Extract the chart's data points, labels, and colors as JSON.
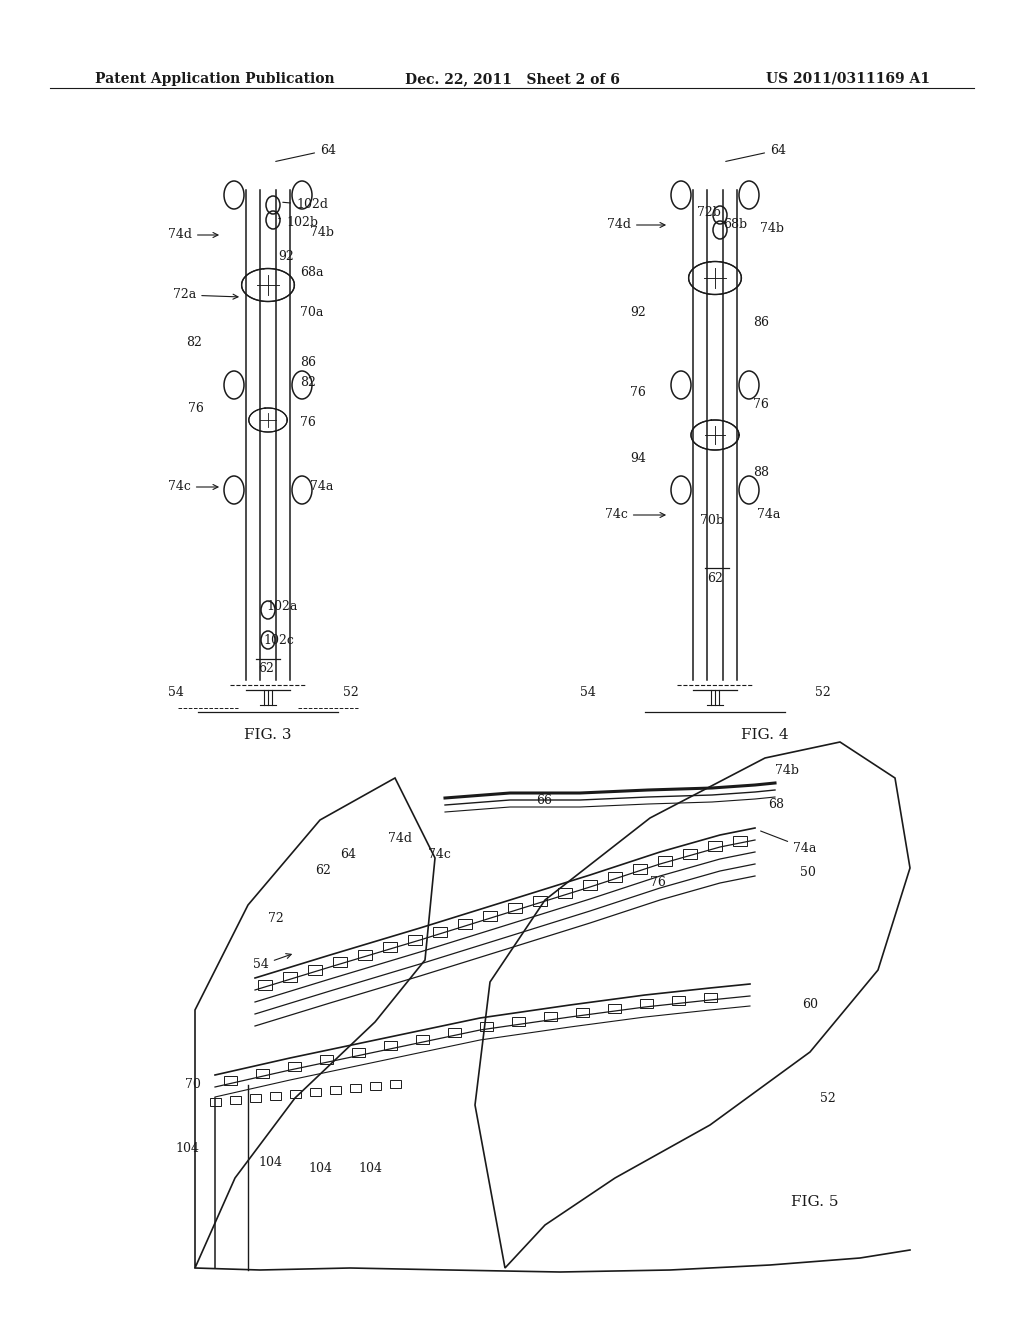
{
  "title_left": "Patent Application Publication",
  "title_mid": "Dec. 22, 2011   Sheet 2 of 6",
  "title_right": "US 2011/0311169 A1",
  "fig3_label": "FIG. 3",
  "fig4_label": "FIG. 4",
  "fig5_label": "FIG. 5",
  "bg_color": "#ffffff",
  "line_color": "#1a1a1a",
  "font_size_header": 10,
  "font_size_label": 9,
  "font_size_fig": 11
}
